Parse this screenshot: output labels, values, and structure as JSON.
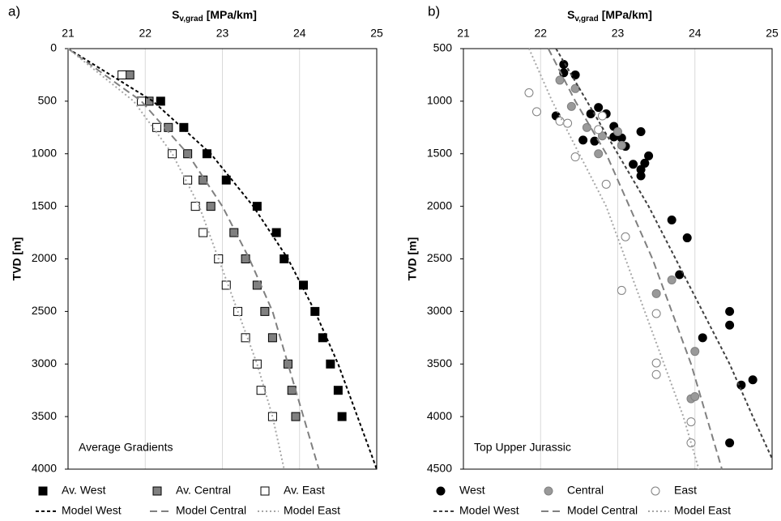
{
  "chart_data": [
    {
      "type": "scatter",
      "panel_label": "a)",
      "xlabel": "S",
      "xlabel_sub": "v,grad",
      "xlabel_unit": "[MPa/km]",
      "ylabel": "TVD [m]",
      "annotation": "Average Gradients",
      "xlim": [
        21,
        25
      ],
      "xticks": [
        21,
        22,
        23,
        24,
        25
      ],
      "ylim": [
        0,
        4000
      ],
      "yticks": [
        0,
        500,
        1000,
        1500,
        2000,
        2500,
        3000,
        3500,
        4000
      ],
      "y_inverted": true,
      "grid": "x",
      "marker": "square",
      "series": [
        {
          "name": "Av. West",
          "color": "#000000",
          "fill": "#000000",
          "x": [
            21.75,
            22.2,
            22.5,
            22.8,
            23.05,
            23.45,
            23.7,
            23.8,
            24.05,
            24.2,
            24.3,
            24.4,
            24.5,
            24.55
          ],
          "y": [
            250,
            500,
            750,
            1000,
            1250,
            1500,
            1750,
            2000,
            2250,
            2500,
            2750,
            3000,
            3250,
            3500
          ]
        },
        {
          "name": "Av. Central",
          "color": "#000000",
          "fill": "#808080",
          "x": [
            21.8,
            22.05,
            22.3,
            22.55,
            22.75,
            22.85,
            23.15,
            23.3,
            23.45,
            23.55,
            23.65,
            23.85,
            23.9,
            23.95
          ],
          "y": [
            250,
            500,
            750,
            1000,
            1250,
            1500,
            1750,
            2000,
            2250,
            2500,
            2750,
            3000,
            3250,
            3500
          ]
        },
        {
          "name": "Av. East",
          "color": "#000000",
          "fill": "#ffffff",
          "x": [
            21.7,
            21.95,
            22.15,
            22.35,
            22.55,
            22.65,
            22.75,
            22.95,
            23.05,
            23.2,
            23.3,
            23.45,
            23.5,
            23.65
          ],
          "y": [
            250,
            500,
            750,
            1000,
            1250,
            1500,
            1750,
            2000,
            2250,
            2500,
            2750,
            3000,
            3250,
            3500
          ]
        },
        {
          "name": "Model West",
          "line": "dashed",
          "color": "#000000",
          "x": [
            21,
            22.1,
            22.85,
            23.4,
            23.85,
            24.2,
            24.5,
            24.75,
            25
          ],
          "y": [
            0,
            500,
            1000,
            1500,
            2000,
            2500,
            3000,
            3500,
            4000
          ]
        },
        {
          "name": "Model Central",
          "line": "longdash",
          "color": "#808080",
          "x": [
            21,
            21.95,
            22.55,
            23.0,
            23.35,
            23.65,
            23.85,
            24.05,
            24.25
          ],
          "y": [
            0,
            500,
            1000,
            1500,
            2000,
            2500,
            3000,
            3500,
            4000
          ]
        },
        {
          "name": "Model East",
          "line": "dotted",
          "color": "#a6a6a6",
          "x": [
            21,
            21.85,
            22.35,
            22.7,
            22.95,
            23.2,
            23.45,
            23.65,
            23.8
          ],
          "y": [
            0,
            500,
            1000,
            1500,
            2000,
            2500,
            3000,
            3500,
            4000
          ]
        }
      ]
    },
    {
      "type": "scatter",
      "panel_label": "b)",
      "xlabel": "S",
      "xlabel_sub": "v,grad",
      "xlabel_unit": "[MPa/km]",
      "ylabel": "TVD [m]",
      "annotation": "Top Upper Jurassic",
      "xlim": [
        21,
        25
      ],
      "xticks": [
        21,
        22,
        23,
        24,
        25
      ],
      "ylim": [
        500,
        4500
      ],
      "yticks": [
        500,
        1000,
        1500,
        2000,
        2500,
        3000,
        3500,
        4000,
        4500
      ],
      "y_inverted": true,
      "grid": "x",
      "marker": "circle",
      "series": [
        {
          "name": "West",
          "color": "#000000",
          "fill": "#000000",
          "x": [
            22.3,
            22.3,
            22.45,
            22.2,
            22.55,
            22.65,
            22.7,
            22.75,
            22.85,
            22.95,
            23.05,
            23.1,
            23.3,
            22.95,
            23.2,
            23.3,
            23.35,
            23.4,
            23.3,
            23.7,
            23.9,
            23.8,
            24.45,
            24.45,
            24.1,
            24.75,
            24.6,
            24.45
          ],
          "y": [
            650,
            730,
            750,
            1140,
            1370,
            1120,
            1380,
            1060,
            1120,
            1240,
            1350,
            1430,
            1290,
            1340,
            1600,
            1650,
            1590,
            1520,
            1710,
            2130,
            2300,
            2650,
            3000,
            3130,
            3250,
            3650,
            3700,
            4250
          ]
        },
        {
          "name": "Central",
          "color": "#808080",
          "fill": "#999999",
          "x": [
            22.25,
            22.4,
            22.45,
            22.6,
            22.75,
            22.8,
            23.0,
            23.05,
            23.5,
            23.7,
            24.0,
            23.95,
            24.0
          ],
          "y": [
            800,
            1050,
            880,
            1250,
            1500,
            1330,
            1290,
            1420,
            2830,
            2700,
            3380,
            3830,
            3810
          ]
        },
        {
          "name": "East",
          "color": "#808080",
          "fill": "#ffffff",
          "x": [
            21.85,
            21.95,
            22.25,
            22.35,
            22.45,
            22.8,
            22.75,
            22.85,
            23.1,
            23.05,
            23.5,
            23.5,
            23.5,
            23.95,
            23.95
          ],
          "y": [
            920,
            1100,
            1190,
            1210,
            1530,
            1140,
            1270,
            1790,
            2290,
            2800,
            3020,
            3490,
            3600,
            4050,
            4250
          ]
        },
        {
          "name": "Model West",
          "line": "dashed",
          "color": "#404040",
          "x": [
            22.2,
            22.6,
            23.0,
            23.4,
            23.75,
            24.1,
            24.45,
            24.75,
            25.0
          ],
          "y": [
            500,
            1000,
            1500,
            2000,
            2500,
            3000,
            3500,
            4000,
            4400
          ]
        },
        {
          "name": "Model Central",
          "line": "longdash",
          "color": "#808080",
          "x": [
            22.1,
            22.45,
            22.85,
            23.15,
            23.45,
            23.7,
            23.95,
            24.15,
            24.35
          ],
          "y": [
            500,
            1000,
            1500,
            2000,
            2500,
            3000,
            3500,
            4000,
            4500
          ]
        },
        {
          "name": "Model East",
          "line": "dotted",
          "color": "#a6a6a6",
          "x": [
            21.85,
            22.15,
            22.5,
            22.85,
            23.1,
            23.35,
            23.6,
            23.85,
            24.05
          ],
          "y": [
            500,
            1000,
            1500,
            2000,
            2500,
            3000,
            3500,
            4000,
            4500
          ]
        }
      ]
    }
  ]
}
